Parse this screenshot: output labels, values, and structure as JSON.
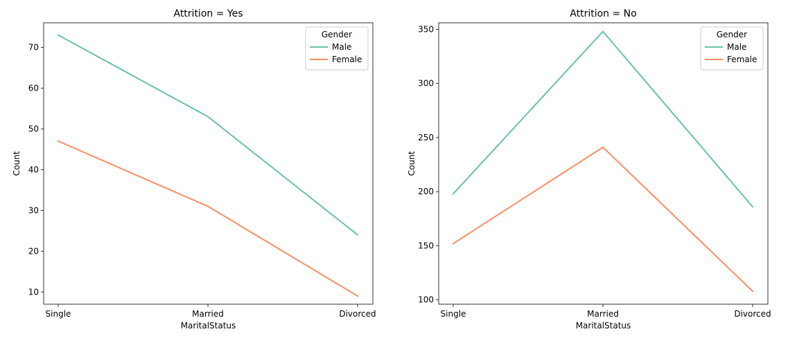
{
  "chart_data": [
    {
      "type": "line",
      "title": "Attrition = Yes",
      "xlabel": "MaritalStatus",
      "ylabel": "Count",
      "categories": [
        "Single",
        "Married",
        "Divorced"
      ],
      "ylim": [
        7,
        76
      ],
      "yticks": [
        10,
        20,
        30,
        40,
        50,
        60,
        70
      ],
      "legend": {
        "title": "Gender",
        "placement": "top-right"
      },
      "series": [
        {
          "name": "Male",
          "color": "#66c2a5",
          "values": [
            73,
            53,
            24
          ]
        },
        {
          "name": "Female",
          "color": "#fc8d62",
          "values": [
            47,
            31,
            9
          ]
        }
      ]
    },
    {
      "type": "line",
      "title": "Attrition = No",
      "xlabel": "MaritalStatus",
      "ylabel": "Count",
      "categories": [
        "Single",
        "Married",
        "Divorced"
      ],
      "ylim": [
        96,
        356
      ],
      "yticks": [
        100,
        150,
        200,
        250,
        300,
        350
      ],
      "legend": {
        "title": "Gender",
        "placement": "top-right"
      },
      "series": [
        {
          "name": "Male",
          "color": "#66c2a5",
          "values": [
            198,
            348,
            186
          ]
        },
        {
          "name": "Female",
          "color": "#fc8d62",
          "values": [
            152,
            241,
            108
          ]
        }
      ]
    }
  ]
}
